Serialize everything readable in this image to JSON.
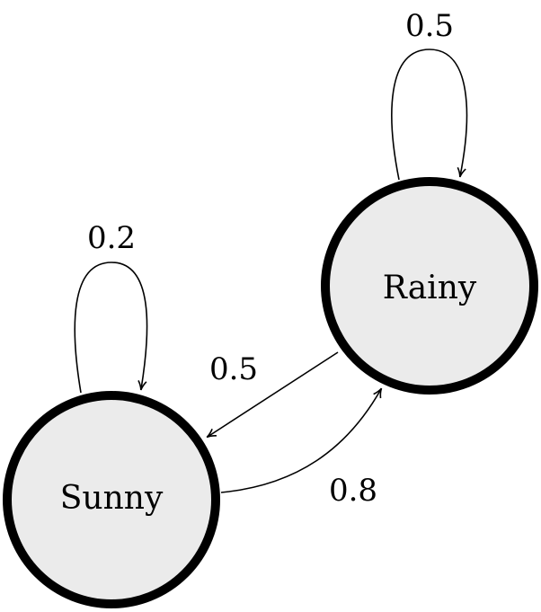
{
  "diagram": {
    "states": [
      {
        "id": "sunny",
        "label": "Sunny"
      },
      {
        "id": "rainy",
        "label": "Rainy"
      }
    ],
    "transitions": [
      {
        "from": "Rainy",
        "to": "Rainy",
        "probability": "0.5"
      },
      {
        "from": "Sunny",
        "to": "Sunny",
        "probability": "0.2"
      },
      {
        "from": "Rainy",
        "to": "Sunny",
        "probability": "0.5"
      },
      {
        "from": "Sunny",
        "to": "Rainy",
        "probability": "0.8"
      }
    ],
    "colors": {
      "node_fill": "#ebebeb",
      "node_stroke": "#000000",
      "edge": "#000000"
    }
  }
}
